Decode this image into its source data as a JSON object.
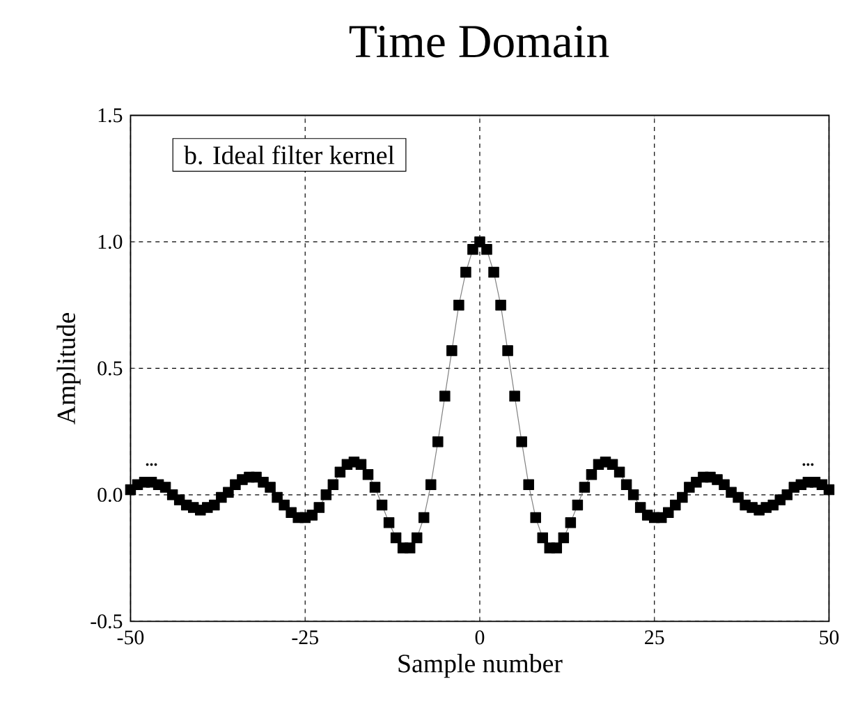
{
  "chart_data": {
    "type": "line",
    "title": "Time Domain",
    "xlabel": "Sample number",
    "ylabel": "Amplitude",
    "x": [
      -50,
      -49,
      -48,
      -47,
      -46,
      -45,
      -44,
      -43,
      -42,
      -41,
      -40,
      -39,
      -38,
      -37,
      -36,
      -35,
      -34,
      -33,
      -32,
      -31,
      -30,
      -29,
      -28,
      -27,
      -26,
      -25,
      -24,
      -23,
      -22,
      -21,
      -20,
      -19,
      -18,
      -17,
      -16,
      -15,
      -14,
      -13,
      -12,
      -11,
      -10,
      -9,
      -8,
      -7,
      -6,
      -5,
      -4,
      -3,
      -2,
      -1,
      0,
      1,
      2,
      3,
      4,
      5,
      6,
      7,
      8,
      9,
      10,
      11,
      12,
      13,
      14,
      15,
      16,
      17,
      18,
      19,
      20,
      21,
      22,
      23,
      24,
      25,
      26,
      27,
      28,
      29,
      30,
      31,
      32,
      33,
      34,
      35,
      36,
      37,
      38,
      39,
      40,
      41,
      42,
      43,
      44,
      45,
      46,
      47,
      48,
      49,
      50
    ],
    "series": [
      {
        "color": "#000000",
        "values": [
          0.02,
          0.04,
          0.05,
          0.05,
          0.04,
          0.03,
          0.0,
          -0.02,
          -0.04,
          -0.05,
          -0.06,
          -0.05,
          -0.04,
          -0.01,
          0.01,
          0.04,
          0.06,
          0.07,
          0.07,
          0.05,
          0.03,
          -0.01,
          -0.04,
          -0.07,
          -0.09,
          -0.09,
          -0.08,
          -0.05,
          0.0,
          0.04,
          0.09,
          0.12,
          0.13,
          0.12,
          0.08,
          0.03,
          -0.04,
          -0.11,
          -0.17,
          -0.21,
          -0.21,
          -0.17,
          -0.09,
          0.04,
          0.21,
          0.39,
          0.57,
          0.75,
          0.88,
          0.97,
          1.0,
          0.97,
          0.88,
          0.75,
          0.57,
          0.39,
          0.21,
          0.04,
          -0.09,
          -0.17,
          -0.21,
          -0.21,
          -0.17,
          -0.11,
          -0.04,
          0.03,
          0.08,
          0.12,
          0.13,
          0.12,
          0.09,
          0.04,
          0.0,
          -0.05,
          -0.08,
          -0.09,
          -0.09,
          -0.07,
          -0.04,
          -0.01,
          0.03,
          0.05,
          0.07,
          0.07,
          0.06,
          0.04,
          0.01,
          -0.01,
          -0.04,
          -0.05,
          -0.06,
          -0.05,
          -0.04,
          -0.02,
          0.0,
          0.03,
          0.04,
          0.05,
          0.05,
          0.04,
          0.02
        ]
      }
    ],
    "xlim": [
      -50,
      50
    ],
    "xticks": [
      -50,
      -25,
      0,
      25,
      50
    ],
    "ylim": [
      -0.5,
      1.5
    ],
    "yticks": [
      -0.5,
      {
        "value": 0,
        "label": "0.0"
      },
      0.5,
      {
        "value": 1,
        "label": "1.0"
      },
      1.5
    ],
    "grid": true,
    "marker": "square",
    "line_style": "solid",
    "annotations": [
      "b. Ideal filter kernel",
      "...",
      "..."
    ]
  }
}
